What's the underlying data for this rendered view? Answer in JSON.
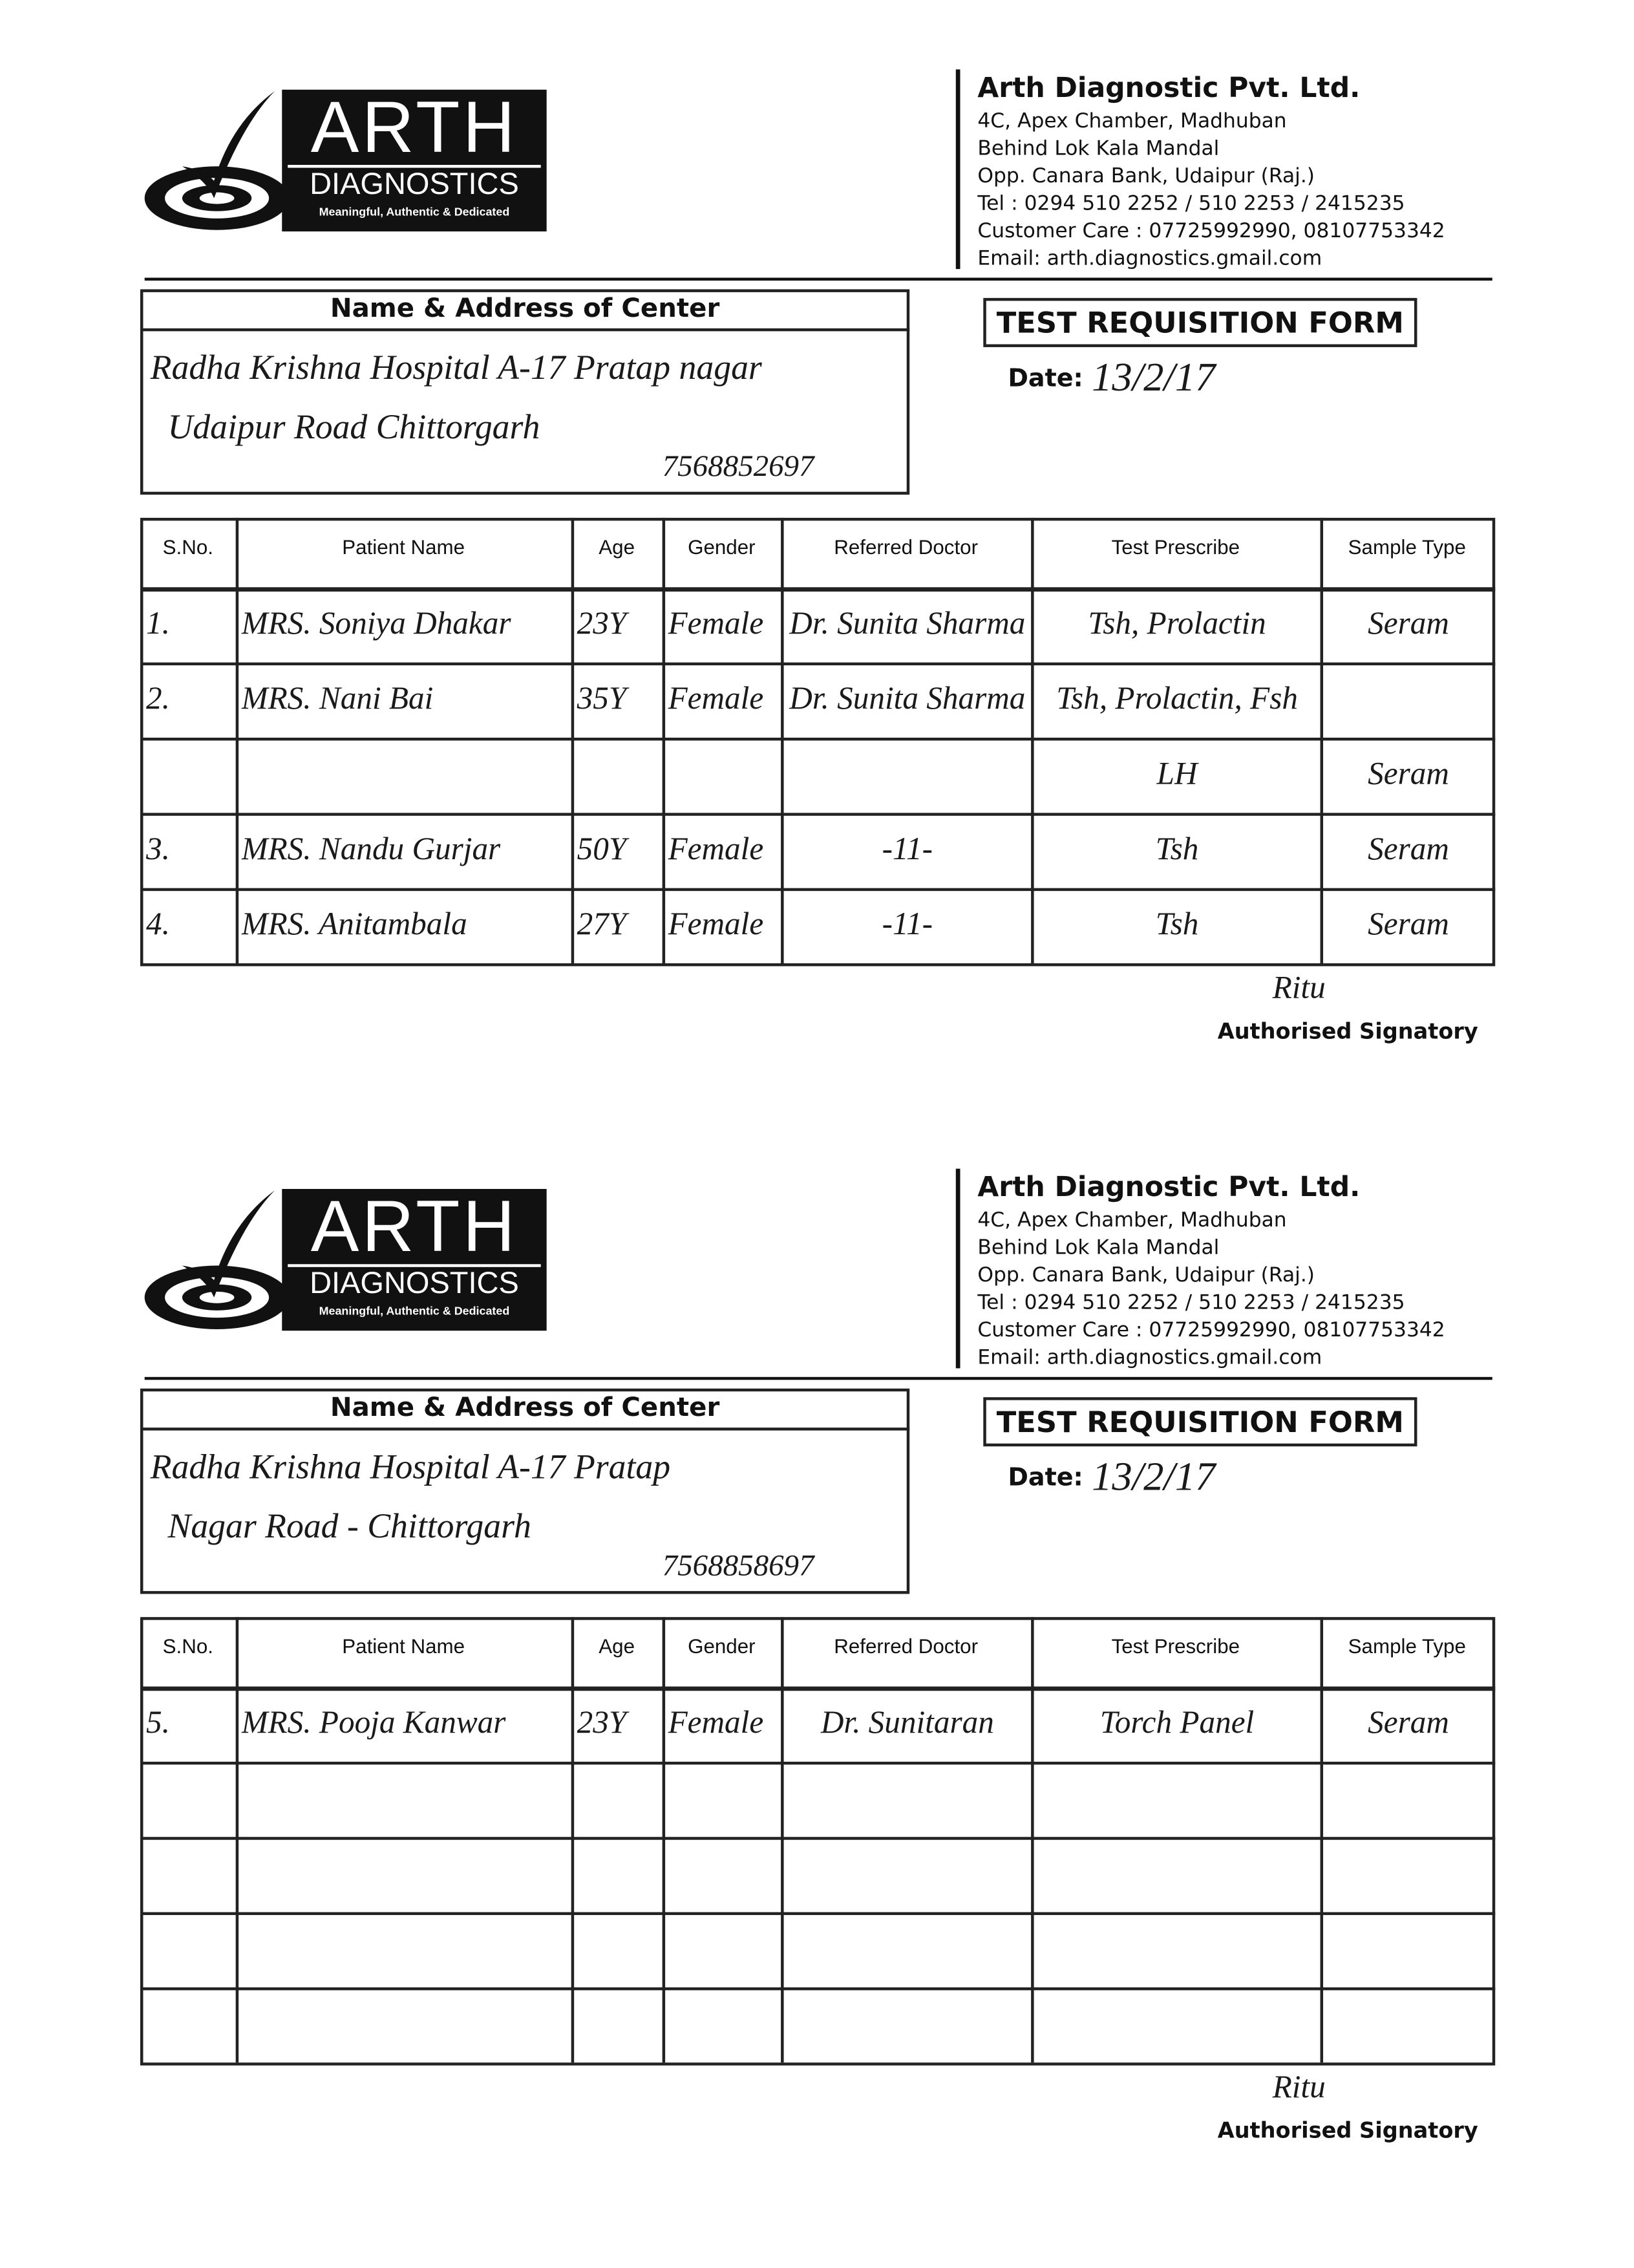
{
  "forms": [
    {
      "logo": {
        "name": "ARTH",
        "sub": "DIAGNOSTICS",
        "tagline": "Meaningful, Authentic & Dedicated"
      },
      "company": {
        "name": "Arth Diagnostic Pvt. Ltd.",
        "lines": [
          "4C, Apex Chamber, Madhuban",
          "Behind Lok Kala Mandal",
          "Opp. Canara Bank, Udaipur (Raj.)",
          "Tel : 0294 510 2252 / 510 2253 / 2415235",
          "Customer Care : 07725992990, 08107753342",
          "Email: arth.diagnostics.gmail.com"
        ]
      },
      "center": {
        "heading": "Name & Address of Center",
        "lines": [
          "Radha Krishna Hospital A-17 Pratap nagar",
          "Udaipur Road Chittorgarh",
          "7568852697"
        ]
      },
      "form_title": "TEST REQUISITION FORM",
      "date": {
        "label": "Date:",
        "value": "13/2/17"
      },
      "table": {
        "headers": [
          "S.No.",
          "Patient Name",
          "Age",
          "Gender",
          "Referred Doctor",
          "Test Prescribe",
          "Sample Type"
        ],
        "rows": [
          [
            "1.",
            "MRS. Soniya Dhakar",
            "23Y",
            "Female",
            "Dr. Sunita Sharma",
            "Tsh, Prolactin",
            "Seram"
          ],
          [
            "2.",
            "MRS. Nani Bai",
            "35Y",
            "Female",
            "Dr. Sunita Sharma",
            "Tsh, Prolactin, Fsh",
            null
          ],
          [
            null,
            null,
            null,
            null,
            null,
            "LH",
            "Seram"
          ],
          [
            "3.",
            "MRS. Nandu Gurjar",
            "50Y",
            "Female",
            "-11-",
            "Tsh",
            "Seram"
          ],
          [
            "4.",
            "MRS. Anitambala",
            "27Y",
            "Female",
            "-11-",
            "Tsh",
            "Seram"
          ]
        ]
      },
      "signature": {
        "mark": "Ritu",
        "label": "Authorised Signatory"
      }
    },
    {
      "logo": {
        "name": "ARTH",
        "sub": "DIAGNOSTICS",
        "tagline": "Meaningful, Authentic & Dedicated"
      },
      "company": {
        "name": "Arth Diagnostic Pvt. Ltd.",
        "lines": [
          "4C, Apex Chamber, Madhuban",
          "Behind Lok Kala Mandal",
          "Opp. Canara Bank, Udaipur (Raj.)",
          "Tel : 0294 510 2252 / 510 2253 / 2415235",
          "Customer Care : 07725992990, 08107753342",
          "Email: arth.diagnostics.gmail.com"
        ]
      },
      "center": {
        "heading": "Name & Address of Center",
        "lines": [
          "Radha Krishna Hospital A-17 Pratap",
          "Nagar Road - Chittorgarh",
          "7568858697"
        ]
      },
      "form_title": "TEST REQUISITION FORM",
      "date": {
        "label": "Date:",
        "value": "13/2/17"
      },
      "table": {
        "headers": [
          "S.No.",
          "Patient Name",
          "Age",
          "Gender",
          "Referred Doctor",
          "Test Prescribe",
          "Sample Type"
        ],
        "rows": [
          [
            "5.",
            "MRS. Pooja Kanwar",
            "23Y",
            "Female",
            "Dr. Sunitaran",
            "Torch Panel",
            "Seram"
          ]
        ]
      },
      "signature": {
        "mark": "Ritu",
        "label": "Authorised Signatory"
      }
    }
  ]
}
